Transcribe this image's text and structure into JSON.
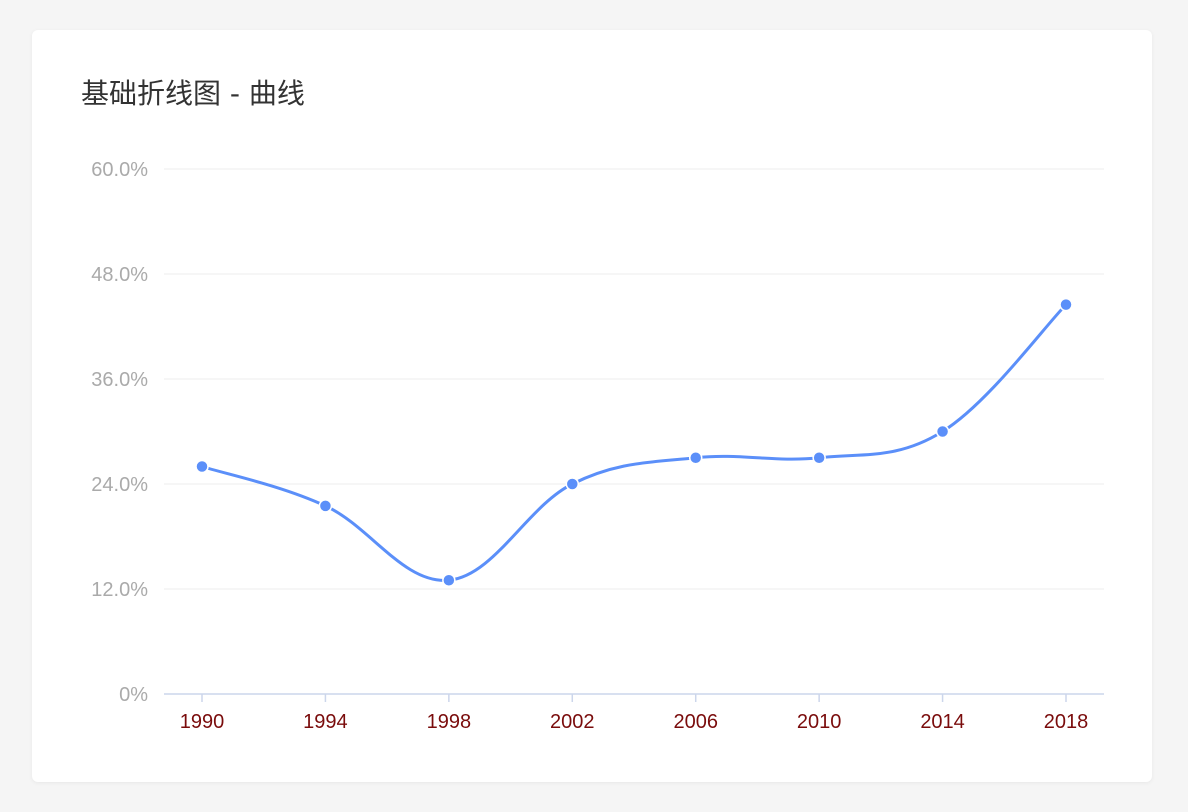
{
  "page": {
    "title": "基础折线图 - 曲线"
  },
  "chart_data": {
    "type": "line",
    "title": "基础折线图 - 曲线",
    "x": [
      "1990",
      "1994",
      "1998",
      "2002",
      "2006",
      "2010",
      "2014",
      "2018"
    ],
    "series": [
      {
        "values": [
          26.0,
          21.5,
          13.0,
          24.0,
          27.0,
          27.0,
          30.0,
          44.5
        ]
      }
    ],
    "ylim": [
      0,
      60
    ],
    "yticks": [
      0,
      12,
      24,
      36,
      48,
      60
    ],
    "ytick_labels": [
      "0%",
      "12.0%",
      "24.0%",
      "36.0%",
      "48.0%",
      "60.0%"
    ],
    "grid": true,
    "legend": "none",
    "smooth": true,
    "colors": {
      "line": "#5b8ff9",
      "grid": "#eeeeee",
      "axis": "#ccd6eb",
      "ytick": "#aaaaaa",
      "xtick": "#7a0c0c"
    }
  }
}
